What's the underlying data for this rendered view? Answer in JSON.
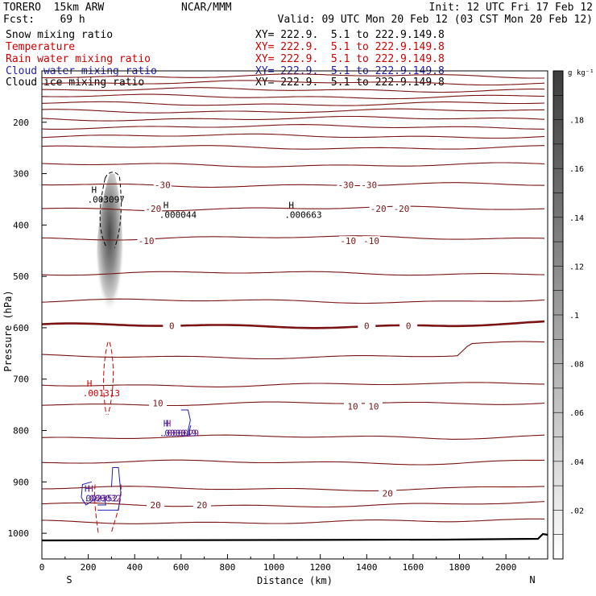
{
  "header": {
    "model": "TORERO  15km ARW",
    "center": "NCAR/MMM",
    "init": "Init: 12 UTC Fri 17 Feb 12",
    "fcst": "Fcst:    69 h",
    "valid": "Valid: 09 UTC Mon 20 Feb 12 (03 CST Mon 20 Feb 12)"
  },
  "legend": [
    {
      "name": "Snow mixing ratio",
      "xy": "XY= 222.9.  5.1 to 222.9.149.8",
      "color": "#000000"
    },
    {
      "name": "Temperature",
      "xy": "XY= 222.9.  5.1 to 222.9.149.8",
      "color": "#cc0000"
    },
    {
      "name": "Rain water mixing ratio",
      "xy": "XY= 222.9.  5.1 to 222.9.149.8",
      "color": "#cc0000"
    },
    {
      "name": "Cloud water mixing ratio",
      "xy": "XY= 222.9.  5.1 to 222.9.149.8",
      "color": "#1f1fb0"
    },
    {
      "name": "Cloud ice mixing ratio",
      "xy": "XY= 222.9.  5.1 to 222.9.149.8",
      "color": "#000000"
    }
  ],
  "chart_data": {
    "type": "contour-cross-section",
    "xlabel": "Distance (km)",
    "ylabel": "Pressure (hPa)",
    "xlim": [
      0,
      2180
    ],
    "ylim": [
      1050,
      100
    ],
    "x_ticks": [
      0,
      200,
      400,
      600,
      800,
      1000,
      1200,
      1400,
      1600,
      1800,
      2000
    ],
    "y_ticks": [
      200,
      300,
      400,
      500,
      600,
      700,
      800,
      900,
      1000
    ],
    "endpoints": {
      "left": "S",
      "right": "N"
    },
    "colorbar": {
      "unit": "g kg⁻¹",
      "ticks": [
        ".02",
        ".04",
        ".06",
        ".08",
        ".1",
        ".12",
        ".14",
        ".16",
        ".18"
      ],
      "range": [
        0,
        0.2
      ]
    },
    "isotherms": [
      {
        "p": 110
      },
      {
        "p": 123
      },
      {
        "p": 137
      },
      {
        "p": 150
      },
      {
        "p": 164
      },
      {
        "p": 178
      },
      {
        "p": 193
      },
      {
        "p": 209
      },
      {
        "p": 227
      },
      {
        "p": 249
      },
      {
        "p": 283
      },
      {
        "p": 322,
        "label": "-30"
      },
      {
        "p": 368,
        "label": "-20"
      },
      {
        "p": 425,
        "label": "-10"
      },
      {
        "p": 494
      },
      {
        "p": 548
      },
      {
        "p": 596,
        "label": "0",
        "bold": true
      },
      {
        "p": 656
      },
      {
        "p": 711
      },
      {
        "p": 748,
        "label": "10"
      },
      {
        "p": 813
      },
      {
        "p": 862
      },
      {
        "p": 913
      },
      {
        "p": 945,
        "label": "20"
      },
      {
        "p": 978
      }
    ],
    "temperature_labels": [
      {
        "text": "-30",
        "x": 520,
        "p": 322
      },
      {
        "text": "-30",
        "x": 1310,
        "p": 322
      },
      {
        "text": "-30",
        "x": 1410,
        "p": 322
      },
      {
        "text": "-20",
        "x": 480,
        "p": 368
      },
      {
        "text": "-20",
        "x": 1450,
        "p": 368
      },
      {
        "text": "-20",
        "x": 1550,
        "p": 368
      },
      {
        "text": "-10",
        "x": 450,
        "p": 431
      },
      {
        "text": "-10",
        "x": 1320,
        "p": 431
      },
      {
        "text": "-10",
        "x": 1420,
        "p": 431
      },
      {
        "text": "0",
        "x": 560,
        "p": 596
      },
      {
        "text": "0",
        "x": 1400,
        "p": 596
      },
      {
        "text": "0",
        "x": 1580,
        "p": 596
      },
      {
        "text": "10",
        "x": 500,
        "p": 747
      },
      {
        "text": "10",
        "x": 1340,
        "p": 753
      },
      {
        "text": "10",
        "x": 1430,
        "p": 753
      },
      {
        "text": "20",
        "x": 490,
        "p": 945
      },
      {
        "text": "20",
        "x": 690,
        "p": 945
      },
      {
        "text": "20",
        "x": 1490,
        "p": 922
      }
    ],
    "maxima": [
      {
        "field": "snow",
        "label": "H",
        "value": ".003097",
        "x": 255,
        "p": 345
      },
      {
        "field": "snow",
        "label": "H",
        "value": ".000044",
        "x": 565,
        "p": 375
      },
      {
        "field": "snow",
        "label": "H",
        "value": ".000663",
        "x": 1105,
        "p": 375
      },
      {
        "field": "rain",
        "label": "H",
        "value": ".001313",
        "x": 235,
        "p": 722
      },
      {
        "field": "cloud_water",
        "label": "H",
        "value": ".000049",
        "x": 565,
        "p": 800
      },
      {
        "field": "cloud_ice",
        "label": "H",
        "value": ".000029",
        "x": 565,
        "p": 800
      },
      {
        "field": "cloud_water",
        "label": "H",
        "value": ".002352",
        "x": 225,
        "p": 927
      },
      {
        "field": "cloud_ice",
        "label": "H",
        "value": ".000032",
        "x": 230,
        "p": 927
      }
    ],
    "snow_max_gkg": 0.19,
    "snow_plume": {
      "x": 300,
      "p_top": 300,
      "p_bottom": 580
    }
  }
}
